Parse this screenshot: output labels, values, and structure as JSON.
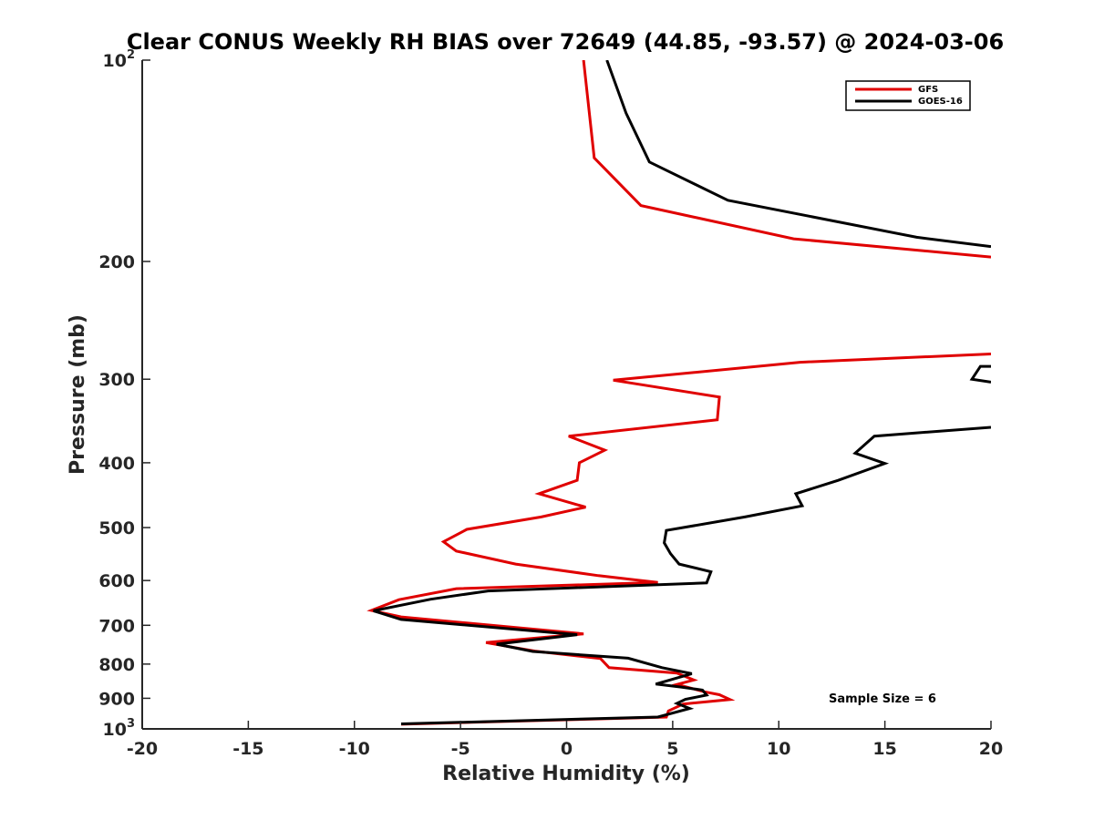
{
  "chart_data": {
    "type": "line",
    "title": "Clear CONUS Weekly RH BIAS over 72649 (44.85, -93.57) @ 2024-03-06",
    "xlabel": "Relative Humidity (%)",
    "ylabel": "Pressure (mb)",
    "xlim": [
      -20,
      20
    ],
    "ylim": [
      100,
      1000
    ],
    "y_scale": "log",
    "y_reversed": true,
    "grid": false,
    "legend_position": "top-right",
    "x_ticks": [
      {
        "value": -20,
        "label": "-20"
      },
      {
        "value": -15,
        "label": "-15"
      },
      {
        "value": -10,
        "label": "-10"
      },
      {
        "value": -5,
        "label": "-5"
      },
      {
        "value": 0,
        "label": "0"
      },
      {
        "value": 5,
        "label": "5"
      },
      {
        "value": 10,
        "label": "10"
      },
      {
        "value": 15,
        "label": "15"
      },
      {
        "value": 20,
        "label": "20"
      }
    ],
    "y_ticks": [
      {
        "value": 100,
        "base": "10",
        "exp": "2"
      },
      {
        "value": 200,
        "label": "200"
      },
      {
        "value": 300,
        "label": "300"
      },
      {
        "value": 400,
        "label": "400"
      },
      {
        "value": 500,
        "label": "500"
      },
      {
        "value": 600,
        "label": "600"
      },
      {
        "value": 700,
        "label": "700"
      },
      {
        "value": 800,
        "label": "800"
      },
      {
        "value": 900,
        "label": "900"
      },
      {
        "value": 1000,
        "base": "10",
        "exp": "3"
      }
    ],
    "annotation": "Sample Size = 6",
    "series": [
      {
        "name": "GFS",
        "color": "#e00000",
        "segments": [
          [
            [
              0.8,
              100
            ],
            [
              1.3,
              140
            ],
            [
              3.5,
              165
            ],
            [
              10.7,
              185
            ],
            [
              20.0,
              197
            ]
          ],
          [
            [
              20.0,
              275
            ],
            [
              11.0,
              283
            ],
            [
              2.2,
              301
            ],
            [
              7.2,
              319
            ],
            [
              7.1,
              345
            ],
            [
              0.1,
              365
            ],
            [
              1.8,
              383
            ],
            [
              0.6,
              400
            ],
            [
              0.5,
              425
            ],
            [
              -1.3,
              445
            ],
            [
              0.9,
              466
            ],
            [
              -1.2,
              482
            ],
            [
              -4.7,
              503
            ],
            [
              -5.8,
              525
            ],
            [
              -5.2,
              542
            ],
            [
              -2.4,
              567
            ],
            [
              1.5,
              590
            ],
            [
              4.3,
              604
            ],
            [
              -5.2,
              617
            ],
            [
              -7.9,
              641
            ],
            [
              -9.2,
              665
            ],
            [
              -7.8,
              680
            ],
            [
              0.8,
              721
            ],
            [
              -3.8,
              743
            ],
            [
              -1.5,
              765
            ],
            [
              1.6,
              785
            ],
            [
              2.0,
              810
            ],
            [
              5.2,
              825
            ],
            [
              6.0,
              845
            ],
            [
              5.2,
              858
            ],
            [
              6.5,
              880
            ],
            [
              7.2,
              889
            ],
            [
              7.7,
              904
            ],
            [
              5.5,
              918
            ],
            [
              4.8,
              940
            ],
            [
              4.7,
              960
            ],
            [
              -7.8,
              984
            ]
          ]
        ]
      },
      {
        "name": "GOES-16",
        "color": "#000000",
        "segments": [
          [
            [
              1.9,
              100
            ],
            [
              2.8,
              120
            ],
            [
              3.9,
              142
            ],
            [
              7.6,
              162
            ],
            [
              16.5,
              184
            ],
            [
              20.0,
              190
            ]
          ],
          [
            [
              20.0,
              287
            ],
            [
              19.5,
              287
            ],
            [
              19.1,
              300
            ],
            [
              20.0,
              303
            ]
          ],
          [
            [
              20.0,
              354
            ],
            [
              14.5,
              365
            ],
            [
              13.6,
              387
            ],
            [
              15.0,
              401
            ],
            [
              12.8,
              425
            ],
            [
              10.8,
              445
            ],
            [
              11.1,
              464
            ],
            [
              8.4,
              482
            ],
            [
              4.7,
              505
            ],
            [
              4.6,
              527
            ],
            [
              4.9,
              547
            ],
            [
              5.3,
              567
            ],
            [
              6.8,
              582
            ],
            [
              6.6,
              605
            ],
            [
              -3.7,
              622
            ],
            [
              -6.4,
              640
            ],
            [
              -9.1,
              666
            ],
            [
              -7.8,
              686
            ],
            [
              0.5,
              723
            ],
            [
              -3.3,
              747
            ],
            [
              -1.6,
              766
            ],
            [
              2.9,
              784
            ],
            [
              4.5,
              810
            ],
            [
              5.9,
              827
            ],
            [
              4.2,
              857
            ],
            [
              5.4,
              866
            ],
            [
              6.4,
              875
            ],
            [
              6.6,
              890
            ],
            [
              5.6,
              903
            ],
            [
              5.2,
              916
            ],
            [
              5.8,
              932
            ],
            [
              4.3,
              960
            ],
            [
              -7.8,
              983
            ]
          ]
        ]
      }
    ]
  }
}
